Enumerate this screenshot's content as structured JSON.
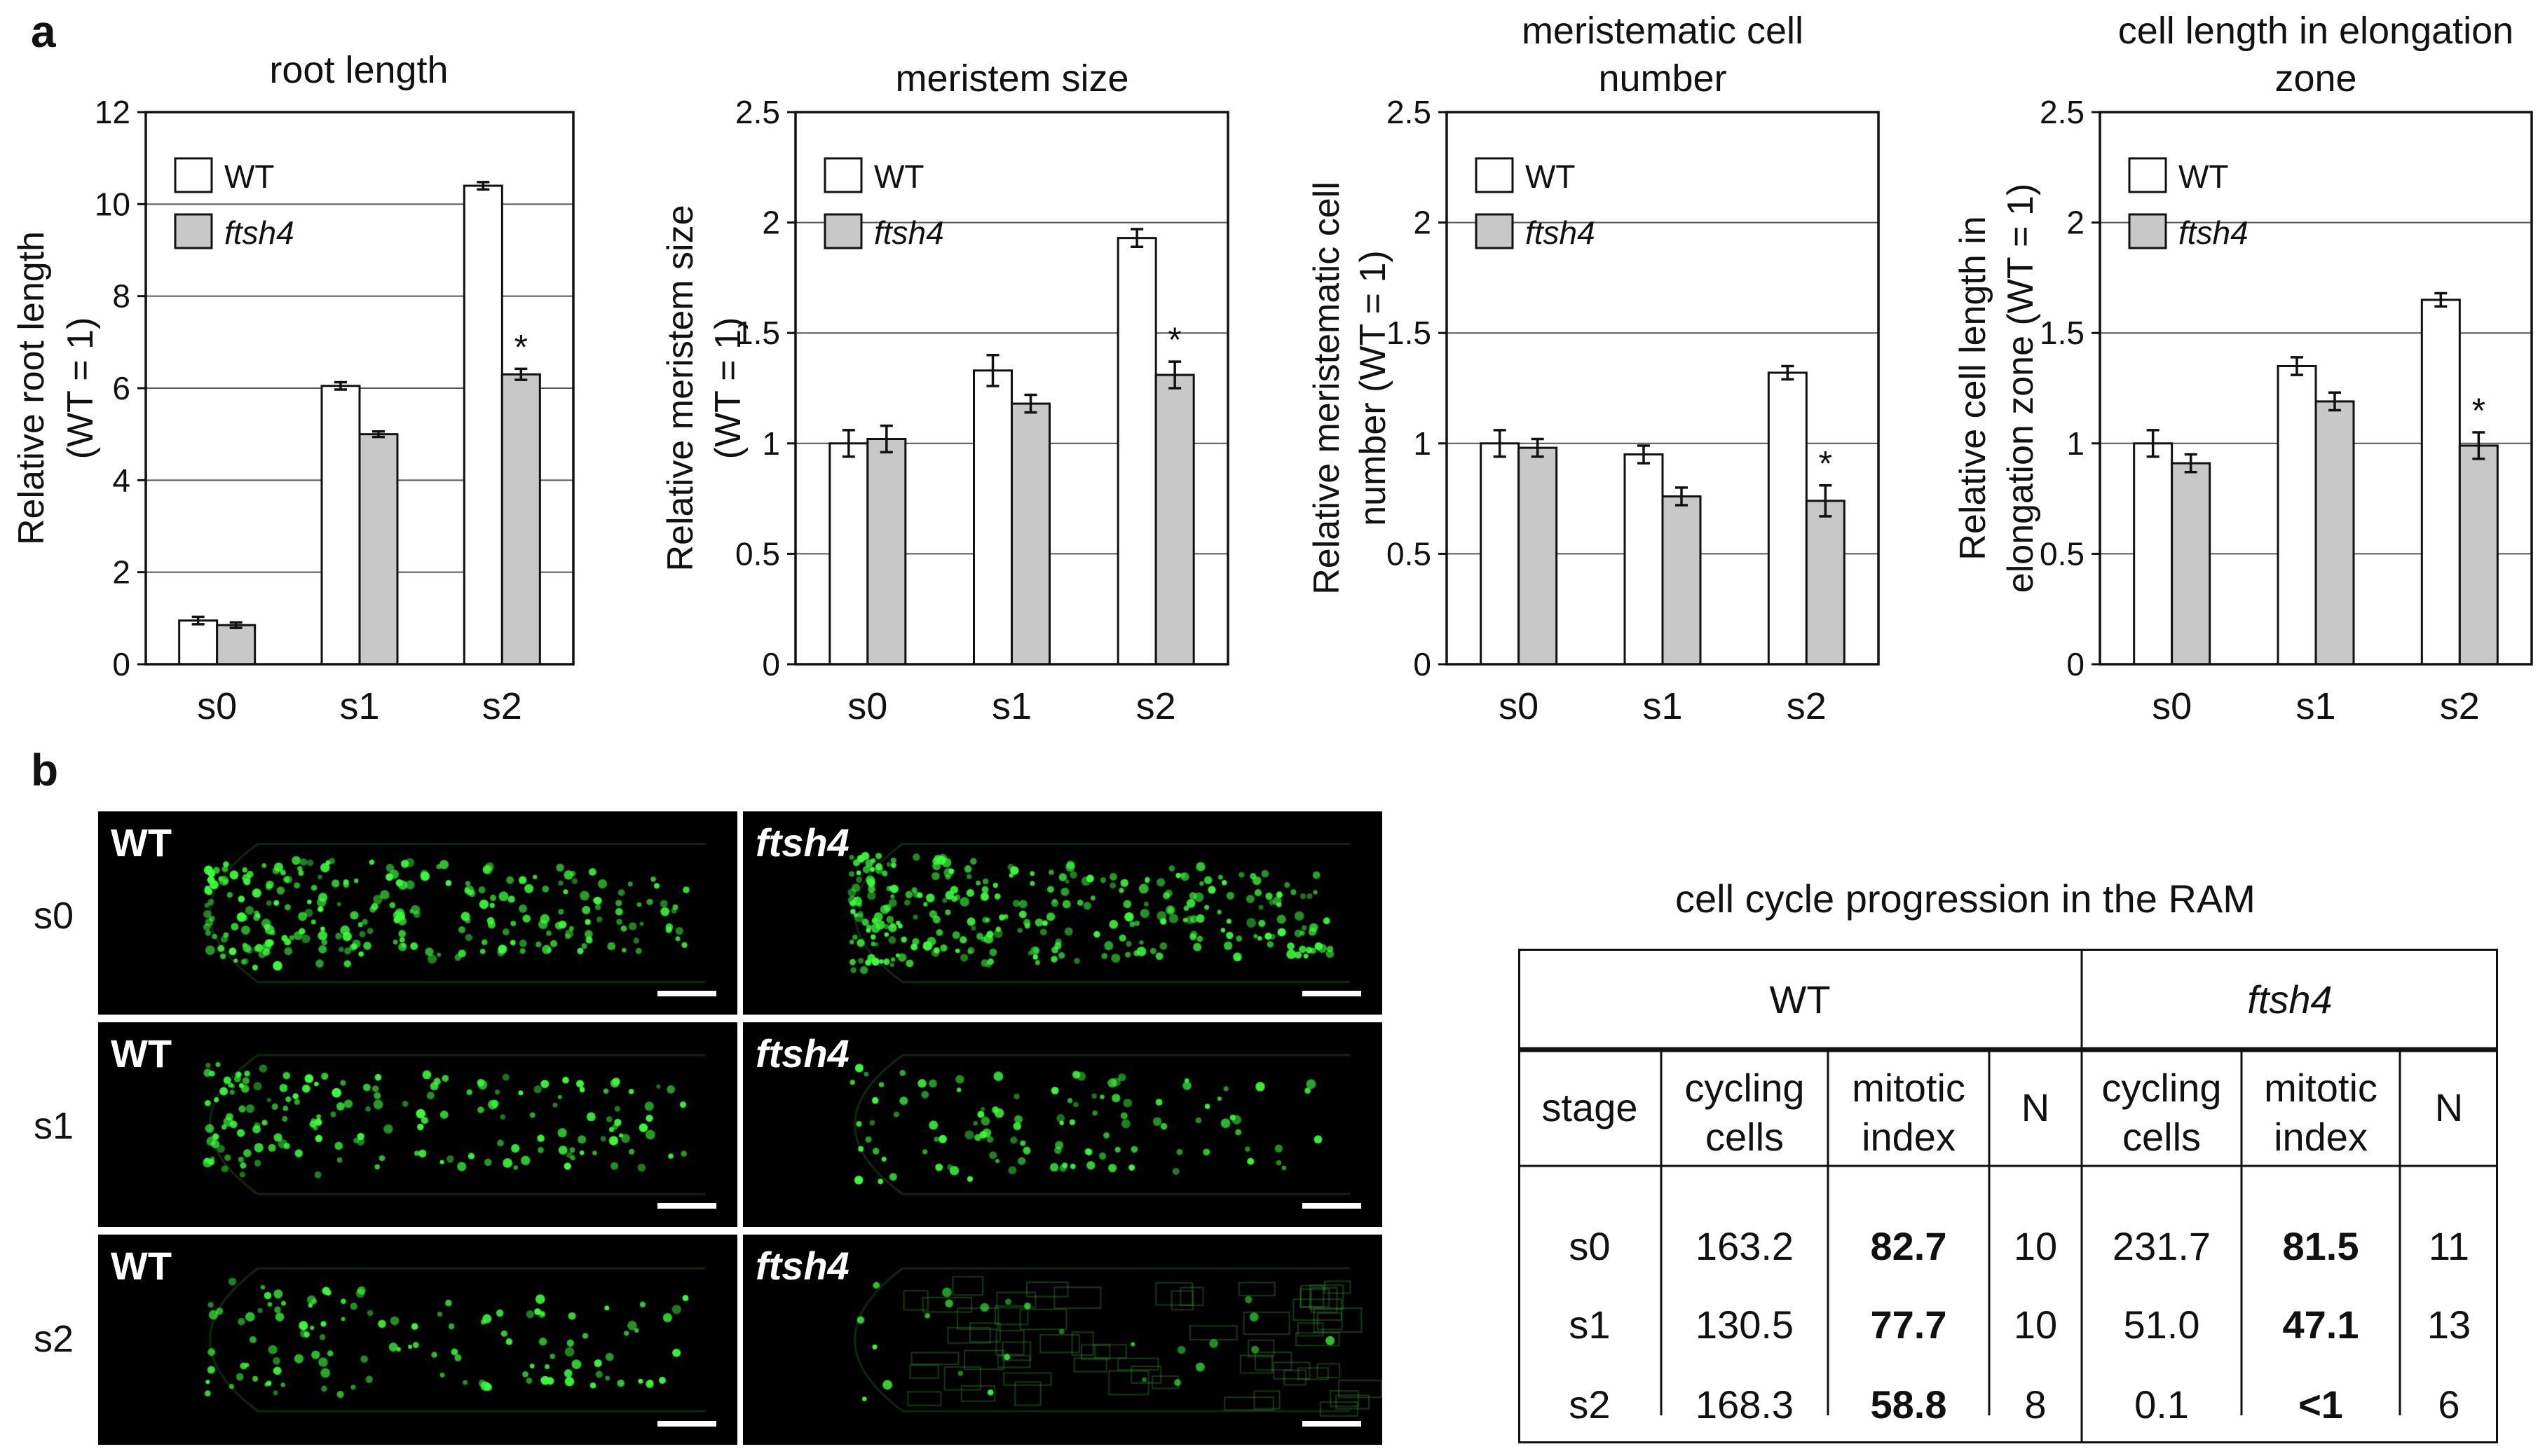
{
  "panel_a_letter": "a",
  "panel_b_letter": "b",
  "chart_data": [
    {
      "type": "bar",
      "title": [
        "root length"
      ],
      "ylabel": [
        "Relative root length",
        "(WT = 1)"
      ],
      "categories": [
        "s0",
        "s1",
        "s2"
      ],
      "ylim": [
        0,
        12
      ],
      "yticks": [
        "0",
        "2",
        "4",
        "6",
        "8",
        "10",
        "12"
      ],
      "grid": true,
      "legend_position": "top-left",
      "series": [
        {
          "name": "WT",
          "color": "#ffffff",
          "values": [
            0.95,
            6.05,
            10.4
          ],
          "errors": [
            0.08,
            0.08,
            0.08
          ]
        },
        {
          "name": "ftsh4",
          "color": "#c8c8c8",
          "values": [
            0.85,
            5.0,
            6.3
          ],
          "errors": [
            0.06,
            0.06,
            0.12
          ]
        }
      ],
      "significance": [
        {
          "category": "s2",
          "series": "ftsh4",
          "mark": "*"
        }
      ]
    },
    {
      "type": "bar",
      "title": [
        "meristem size"
      ],
      "ylabel": [
        "Relative meristem size",
        "(WT = 1)"
      ],
      "categories": [
        "s0",
        "s1",
        "s2"
      ],
      "ylim": [
        0,
        2.5
      ],
      "yticks": [
        "0",
        "0.5",
        "1",
        "1.5",
        "2",
        "2.5"
      ],
      "grid": true,
      "legend_position": "top-left",
      "series": [
        {
          "name": "WT",
          "color": "#ffffff",
          "values": [
            1.0,
            1.33,
            1.93
          ],
          "errors": [
            0.06,
            0.07,
            0.04
          ]
        },
        {
          "name": "ftsh4",
          "color": "#c8c8c8",
          "values": [
            1.02,
            1.18,
            1.31
          ],
          "errors": [
            0.06,
            0.04,
            0.06
          ]
        }
      ],
      "significance": [
        {
          "category": "s2",
          "series": "ftsh4",
          "mark": "*"
        }
      ]
    },
    {
      "type": "bar",
      "title": [
        "meristematic cell",
        "number"
      ],
      "ylabel": [
        "Relative meristematic cell",
        "number (WT = 1)"
      ],
      "categories": [
        "s0",
        "s1",
        "s2"
      ],
      "ylim": [
        0,
        2.5
      ],
      "yticks": [
        "0",
        "0.5",
        "1",
        "1.5",
        "2",
        "2.5"
      ],
      "grid": true,
      "legend_position": "top-left",
      "series": [
        {
          "name": "WT",
          "color": "#ffffff",
          "values": [
            1.0,
            0.95,
            1.32
          ],
          "errors": [
            0.06,
            0.04,
            0.03
          ]
        },
        {
          "name": "ftsh4",
          "color": "#c8c8c8",
          "values": [
            0.98,
            0.76,
            0.74
          ],
          "errors": [
            0.04,
            0.04,
            0.07
          ]
        }
      ],
      "significance": [
        {
          "category": "s2",
          "series": "ftsh4",
          "mark": "*"
        }
      ]
    },
    {
      "type": "bar",
      "title": [
        "cell length in elongation",
        "zone"
      ],
      "ylabel": [
        "Relative cell length in",
        "elongation zone (WT = 1)"
      ],
      "categories": [
        "s0",
        "s1",
        "s2"
      ],
      "ylim": [
        0,
        2.5
      ],
      "yticks": [
        "0",
        "0.5",
        "1",
        "1.5",
        "2",
        "2.5"
      ],
      "grid": true,
      "legend_position": "top-left",
      "series": [
        {
          "name": "WT",
          "color": "#ffffff",
          "values": [
            1.0,
            1.35,
            1.65
          ],
          "errors": [
            0.06,
            0.04,
            0.03
          ]
        },
        {
          "name": "ftsh4",
          "color": "#c8c8c8",
          "values": [
            0.91,
            1.19,
            0.99
          ],
          "errors": [
            0.04,
            0.04,
            0.06
          ]
        }
      ],
      "significance": [
        {
          "category": "s2",
          "series": "ftsh4",
          "mark": "*"
        }
      ]
    }
  ],
  "micrographs": {
    "rows": [
      "s0",
      "s1",
      "s2"
    ],
    "columns": [
      {
        "label": "WT",
        "italic": false
      },
      {
        "label": "ftsh4",
        "italic": true
      }
    ],
    "fluorescence_color": "#33ff33"
  },
  "table": {
    "title": "cell cycle progression in the RAM",
    "groups": [
      {
        "label": "WT",
        "italic": false
      },
      {
        "label": "ftsh4",
        "italic": true
      }
    ],
    "headers": [
      [
        "stage"
      ],
      [
        "cycling",
        "cells"
      ],
      [
        "mitotic",
        "index"
      ],
      [
        "N"
      ],
      [
        "cycling",
        "cells"
      ],
      [
        "mitotic",
        "index"
      ],
      [
        "N"
      ]
    ],
    "rows": [
      [
        "s0",
        "163.2",
        "82.7",
        "10",
        "231.7",
        "81.5",
        "11"
      ],
      [
        "s1",
        "130.5",
        "77.7",
        "10",
        "51.0",
        "47.1",
        "13"
      ],
      [
        "s2",
        "168.3",
        "58.8",
        "8",
        "0.1",
        "<1",
        "6"
      ]
    ],
    "bold_columns": [
      2,
      5
    ]
  }
}
